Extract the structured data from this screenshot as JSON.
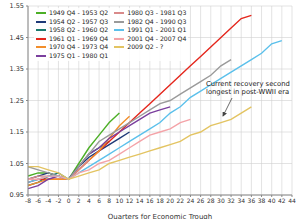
{
  "chart_data": {
    "type": "line",
    "x_label": "Quarters for Economic Trough",
    "annotation": "Current recovery second longest in post-WWII era",
    "x": [
      -8,
      -6,
      -4,
      -2,
      0,
      2,
      4,
      6,
      8,
      10,
      12,
      14,
      16,
      18,
      20,
      22,
      24,
      26,
      28,
      30,
      32,
      34,
      36,
      38,
      40,
      42,
      44
    ],
    "xlim": [
      -8,
      44
    ],
    "xticks": [
      -8,
      -6,
      -4,
      -2,
      0,
      2,
      4,
      6,
      8,
      10,
      12,
      14,
      16,
      18,
      20,
      22,
      24,
      26,
      28,
      30,
      32,
      34,
      36,
      38,
      40,
      42,
      44
    ],
    "ylim": [
      0.95,
      1.55
    ],
    "yticks": [
      0.95,
      1.05,
      1.15,
      1.25,
      1.35,
      1.45,
      1.55
    ],
    "grid": true,
    "legend": "upper left",
    "series": [
      {
        "name": "1949 Q4 - 1953 Q2",
        "color": "#4caf26",
        "values": [
          1.01,
          1.02,
          1.02,
          1.01,
          1.0,
          1.05,
          1.1,
          1.14,
          1.18,
          1.21,
          null,
          null,
          null,
          null,
          null,
          null,
          null,
          null,
          null,
          null,
          null,
          null,
          null,
          null,
          null,
          null,
          null
        ]
      },
      {
        "name": "1954 Q2 - 1957 Q3",
        "color": "#1f3a78",
        "values": [
          1.0,
          1.01,
          1.02,
          1.01,
          1.0,
          1.04,
          1.07,
          1.09,
          1.11,
          1.13,
          1.15,
          null,
          null,
          null,
          null,
          null,
          null,
          null,
          null,
          null,
          null,
          null,
          null,
          null,
          null,
          null,
          null
        ]
      },
      {
        "name": "1958 Q2 - 1960 Q2",
        "color": "#1b7a6e",
        "values": [
          0.98,
          0.99,
          1.01,
          1.02,
          1.0,
          1.04,
          1.08,
          1.1,
          1.12,
          null,
          null,
          null,
          null,
          null,
          null,
          null,
          null,
          null,
          null,
          null,
          null,
          null,
          null,
          null,
          null,
          null,
          null
        ]
      },
      {
        "name": "1961 Q1 - 1969 Q4",
        "color": "#e4261c",
        "values": [
          0.99,
          1.0,
          1.0,
          1.0,
          1.0,
          1.03,
          1.06,
          1.09,
          1.12,
          1.15,
          1.18,
          1.21,
          1.24,
          1.27,
          1.3,
          1.33,
          1.36,
          1.39,
          1.42,
          1.45,
          1.48,
          1.51,
          1.52,
          null,
          null,
          null,
          null
        ]
      },
      {
        "name": "1970 Q4 - 1973 Q4",
        "color": "#f28e2b",
        "values": [
          0.98,
          0.99,
          1.0,
          1.0,
          1.0,
          1.03,
          1.06,
          1.09,
          1.13,
          1.17,
          1.2,
          null,
          null,
          null,
          null,
          null,
          null,
          null,
          null,
          null,
          null,
          null,
          null,
          null,
          null,
          null,
          null
        ]
      },
      {
        "name": "1975 Q1 - 1980 Q1",
        "color": "#7b3f9e",
        "values": [
          0.97,
          0.98,
          1.0,
          1.01,
          1.0,
          1.04,
          1.08,
          1.1,
          1.13,
          1.15,
          1.17,
          1.19,
          1.21,
          1.22,
          1.23,
          null,
          null,
          null,
          null,
          null,
          null,
          null,
          null,
          null,
          null,
          null,
          null
        ]
      },
      {
        "name": "1980 Q3 - 1981 Q3",
        "color": "#d98a8a",
        "values": [
          1.0,
          1.01,
          1.01,
          1.01,
          1.0,
          1.03,
          1.06,
          null,
          null,
          null,
          null,
          null,
          null,
          null,
          null,
          null,
          null,
          null,
          null,
          null,
          null,
          null,
          null,
          null,
          null,
          null,
          null
        ]
      },
      {
        "name": "1982 Q4 - 1990 Q3",
        "color": "#9a9a9a",
        "values": [
          1.04,
          1.03,
          1.02,
          1.01,
          1.0,
          1.04,
          1.08,
          1.12,
          1.14,
          1.16,
          1.18,
          1.2,
          1.22,
          1.24,
          1.25,
          1.27,
          1.29,
          1.31,
          1.33,
          1.36,
          1.38,
          null,
          null,
          null,
          null,
          null,
          null
        ]
      },
      {
        "name": "1991 Q1 - 2001 Q1",
        "color": "#5bc0eb",
        "values": [
          0.99,
          1.0,
          1.01,
          1.01,
          1.0,
          1.02,
          1.04,
          1.06,
          1.08,
          1.1,
          1.12,
          1.14,
          1.16,
          1.18,
          1.21,
          1.23,
          1.26,
          1.28,
          1.3,
          1.32,
          1.34,
          1.36,
          1.38,
          1.4,
          1.43,
          1.44,
          null
        ]
      },
      {
        "name": "2001 Q4 - 2007 Q4",
        "color": "#f4a3a8",
        "values": [
          1.0,
          1.0,
          1.01,
          1.01,
          1.0,
          1.02,
          1.03,
          1.05,
          1.06,
          1.08,
          1.1,
          1.12,
          1.14,
          1.15,
          1.16,
          1.18,
          1.19,
          null,
          null,
          null,
          null,
          null,
          null,
          null,
          null,
          null,
          null
        ]
      },
      {
        "name": "2009 Q2 - ?",
        "color": "#e3c462",
        "values": [
          1.04,
          1.04,
          1.03,
          1.02,
          1.0,
          1.01,
          1.02,
          1.03,
          1.05,
          1.06,
          1.07,
          1.08,
          1.09,
          1.1,
          1.11,
          1.12,
          1.14,
          1.15,
          1.17,
          1.18,
          1.19,
          1.21,
          1.23,
          null,
          null,
          null,
          null
        ]
      }
    ]
  }
}
